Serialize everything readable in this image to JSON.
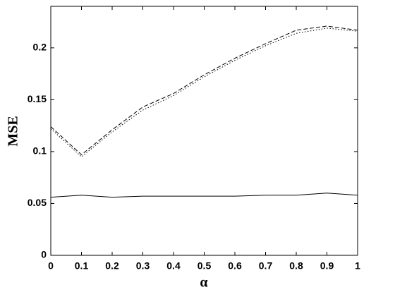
{
  "chart_data": {
    "type": "line",
    "xlabel": "α",
    "ylabel": "MSE",
    "x": [
      0,
      0.1,
      0.2,
      0.3,
      0.4,
      0.5,
      0.6,
      0.7,
      0.8,
      0.9,
      1
    ],
    "series": [
      {
        "color": "#000000",
        "dash": "solid",
        "values": [
          0.056,
          0.058,
          0.056,
          0.057,
          0.057,
          0.057,
          0.057,
          0.058,
          0.058,
          0.06,
          0.058
        ]
      },
      {
        "color": "#000000",
        "dash": "dashed",
        "values": [
          0.124,
          0.097,
          0.121,
          0.143,
          0.156,
          0.174,
          0.19,
          0.204,
          0.217,
          0.221,
          0.217
        ]
      },
      {
        "color": "#000000",
        "dash": "dotted",
        "values": [
          0.122,
          0.095,
          0.119,
          0.14,
          0.154,
          0.172,
          0.188,
          0.202,
          0.214,
          0.219,
          0.216
        ]
      }
    ],
    "xlim": [
      0,
      1
    ],
    "xticks": [
      0,
      0.1,
      0.2,
      0.3,
      0.4,
      0.5,
      0.6,
      0.7,
      0.8,
      0.9,
      1
    ],
    "ylim": [
      0,
      0.24
    ],
    "yticks": [
      0,
      0.05,
      0.1,
      0.15,
      0.2
    ],
    "grid": false
  }
}
